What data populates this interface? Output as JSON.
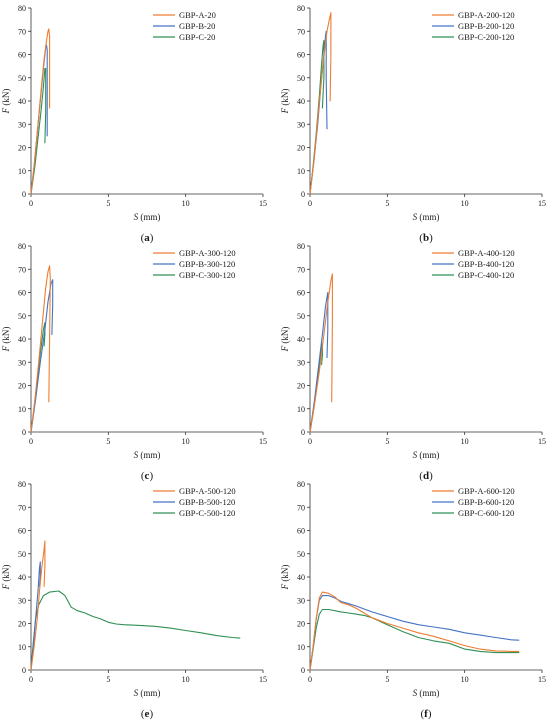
{
  "figure": {
    "background": "#ffffff"
  },
  "chart_data": [
    {
      "type": "line",
      "panel_label": "(a)",
      "xlabel_var": "S",
      "xlabel_unit": "(mm)",
      "ylabel_var": "F",
      "ylabel_unit": "(kN)",
      "xlim": [
        0,
        15
      ],
      "ylim": [
        0,
        80
      ],
      "xticks": [
        0,
        5,
        10,
        15
      ],
      "yticks": [
        0,
        10,
        20,
        30,
        40,
        50,
        60,
        70,
        80
      ],
      "legend_position": "top-right",
      "series": [
        {
          "name": "GBP-A-20",
          "color": "#ed7d31",
          "points": [
            [
              0,
              0
            ],
            [
              0.2,
              12
            ],
            [
              0.45,
              30
            ],
            [
              0.7,
              48
            ],
            [
              0.85,
              58
            ],
            [
              1.0,
              66
            ],
            [
              1.1,
              70
            ],
            [
              1.15,
              71
            ],
            [
              1.2,
              68
            ],
            [
              1.2,
              52
            ],
            [
              1.2,
              37
            ]
          ]
        },
        {
          "name": "GBP-B-20",
          "color": "#4473c4",
          "points": [
            [
              0,
              0
            ],
            [
              0.2,
              12
            ],
            [
              0.4,
              26
            ],
            [
              0.6,
              40
            ],
            [
              0.8,
              54
            ],
            [
              0.95,
              63
            ],
            [
              1.0,
              64
            ],
            [
              1.05,
              62
            ],
            [
              1.05,
              45
            ],
            [
              1.05,
              25
            ]
          ]
        },
        {
          "name": "GBP-C-20",
          "color": "#2f8f54",
          "points": [
            [
              0,
              0
            ],
            [
              0.25,
              12
            ],
            [
              0.45,
              24
            ],
            [
              0.65,
              36
            ],
            [
              0.8,
              46
            ],
            [
              0.9,
              54
            ],
            [
              0.95,
              54
            ],
            [
              0.95,
              35
            ],
            [
              0.9,
              22
            ]
          ]
        }
      ]
    },
    {
      "type": "line",
      "panel_label": "(b)",
      "xlabel_var": "S",
      "xlabel_unit": "(mm)",
      "ylabel_var": "F",
      "ylabel_unit": "(kN)",
      "xlim": [
        0,
        15
      ],
      "ylim": [
        0,
        80
      ],
      "xticks": [
        0,
        5,
        10,
        15
      ],
      "yticks": [
        0,
        10,
        20,
        30,
        40,
        50,
        60,
        70,
        80
      ],
      "legend_position": "top-right",
      "series": [
        {
          "name": "GBP-A-200-120",
          "color": "#ed7d31",
          "points": [
            [
              0,
              0
            ],
            [
              0.25,
              14
            ],
            [
              0.5,
              32
            ],
            [
              0.75,
              50
            ],
            [
              0.95,
              62
            ],
            [
              1.1,
              70
            ],
            [
              1.25,
              75
            ],
            [
              1.35,
              78
            ],
            [
              1.35,
              60
            ],
            [
              1.3,
              40
            ]
          ]
        },
        {
          "name": "GBP-B-200-120",
          "color": "#4473c4",
          "points": [
            [
              0,
              0
            ],
            [
              0.25,
              14
            ],
            [
              0.5,
              30
            ],
            [
              0.7,
              46
            ],
            [
              0.9,
              60
            ],
            [
              1.0,
              68
            ],
            [
              1.05,
              70
            ],
            [
              1.05,
              50
            ],
            [
              1.1,
              28
            ]
          ]
        },
        {
          "name": "GBP-C-200-120",
          "color": "#2f8f54",
          "points": [
            [
              0,
              0
            ],
            [
              0.2,
              12
            ],
            [
              0.4,
              26
            ],
            [
              0.6,
              42
            ],
            [
              0.75,
              56
            ],
            [
              0.85,
              64
            ],
            [
              0.9,
              66
            ],
            [
              0.9,
              50
            ],
            [
              0.8,
              37
            ]
          ]
        }
      ]
    },
    {
      "type": "line",
      "panel_label": "(c)",
      "xlabel_var": "S",
      "xlabel_unit": "(mm)",
      "ylabel_var": "F",
      "ylabel_unit": "(kN)",
      "xlim": [
        0,
        15
      ],
      "ylim": [
        0,
        80
      ],
      "xticks": [
        0,
        5,
        10,
        15
      ],
      "yticks": [
        0,
        10,
        20,
        30,
        40,
        50,
        60,
        70,
        80
      ],
      "legend_position": "top-right",
      "series": [
        {
          "name": "GBP-A-300-120",
          "color": "#ed7d31",
          "points": [
            [
              0,
              0
            ],
            [
              0.25,
              14
            ],
            [
              0.5,
              30
            ],
            [
              0.75,
              48
            ],
            [
              0.95,
              62
            ],
            [
              1.1,
              69
            ],
            [
              1.2,
              71.5
            ],
            [
              1.25,
              66
            ],
            [
              1.2,
              40
            ],
            [
              1.15,
              13
            ]
          ]
        },
        {
          "name": "GBP-B-300-120",
          "color": "#4473c4",
          "points": [
            [
              0,
              0
            ],
            [
              0.3,
              14
            ],
            [
              0.6,
              30
            ],
            [
              0.9,
              44
            ],
            [
              1.1,
              56
            ],
            [
              1.3,
              64
            ],
            [
              1.4,
              65.5
            ],
            [
              1.4,
              55
            ],
            [
              1.35,
              42
            ]
          ]
        },
        {
          "name": "GBP-C-300-120",
          "color": "#2f8f54",
          "points": [
            [
              0,
              0
            ],
            [
              0.2,
              10
            ],
            [
              0.4,
              22
            ],
            [
              0.6,
              34
            ],
            [
              0.8,
              44
            ],
            [
              0.9,
              47
            ],
            [
              0.9,
              42
            ],
            [
              0.85,
              37
            ]
          ]
        }
      ]
    },
    {
      "type": "line",
      "panel_label": "(d)",
      "xlabel_var": "S",
      "xlabel_unit": "(mm)",
      "ylabel_var": "F",
      "ylabel_unit": "(kN)",
      "xlim": [
        0,
        15
      ],
      "ylim": [
        0,
        80
      ],
      "xticks": [
        0,
        5,
        10,
        15
      ],
      "yticks": [
        0,
        10,
        20,
        30,
        40,
        50,
        60,
        70,
        80
      ],
      "legend_position": "top-right",
      "series": [
        {
          "name": "GBP-A-400-120",
          "color": "#ed7d31",
          "points": [
            [
              0,
              0
            ],
            [
              0.3,
              12
            ],
            [
              0.6,
              26
            ],
            [
              0.9,
              42
            ],
            [
              1.15,
              56
            ],
            [
              1.35,
              65
            ],
            [
              1.45,
              68
            ],
            [
              1.45,
              48
            ],
            [
              1.4,
              13
            ]
          ]
        },
        {
          "name": "GBP-B-400-120",
          "color": "#4473c4",
          "points": [
            [
              0,
              0
            ],
            [
              0.3,
              14
            ],
            [
              0.55,
              28
            ],
            [
              0.8,
              42
            ],
            [
              1.0,
              54
            ],
            [
              1.15,
              60
            ],
            [
              1.15,
              44
            ],
            [
              1.1,
              32
            ]
          ]
        },
        {
          "name": "GBP-C-400-120",
          "color": "#2f8f54",
          "points": [
            [
              0,
              0
            ],
            [
              0.2,
              8
            ],
            [
              0.4,
              18
            ],
            [
              0.6,
              28
            ],
            [
              0.75,
              37
            ],
            [
              0.8,
              38
            ],
            [
              0.8,
              33
            ],
            [
              0.75,
              29
            ]
          ]
        }
      ]
    },
    {
      "type": "line",
      "panel_label": "(e)",
      "xlabel_var": "S",
      "xlabel_unit": "(mm)",
      "ylabel_var": "F",
      "ylabel_unit": "(kN)",
      "xlim": [
        0,
        15
      ],
      "ylim": [
        0,
        80
      ],
      "xticks": [
        0,
        5,
        10,
        15
      ],
      "yticks": [
        0,
        10,
        20,
        30,
        40,
        50,
        60,
        70,
        80
      ],
      "legend_position": "top-right",
      "series": [
        {
          "name": "GBP-A-500-120",
          "color": "#ed7d31",
          "points": [
            [
              0,
              0
            ],
            [
              0.2,
              10
            ],
            [
              0.4,
              22
            ],
            [
              0.55,
              34
            ],
            [
              0.7,
              44
            ],
            [
              0.85,
              52
            ],
            [
              0.9,
              55.5
            ],
            [
              0.9,
              45
            ],
            [
              0.85,
              36
            ]
          ]
        },
        {
          "name": "GBP-B-500-120",
          "color": "#4473c4",
          "points": [
            [
              0,
              0
            ],
            [
              0.15,
              10
            ],
            [
              0.3,
              22
            ],
            [
              0.45,
              34
            ],
            [
              0.55,
              44
            ],
            [
              0.6,
              46.5
            ],
            [
              0.6,
              40
            ],
            [
              0.55,
              36
            ]
          ]
        },
        {
          "name": "GBP-C-500-120",
          "color": "#2f8f54",
          "points": [
            [
              0,
              0
            ],
            [
              0.15,
              12
            ],
            [
              0.3,
              22
            ],
            [
              0.5,
              28
            ],
            [
              0.8,
              32
            ],
            [
              1.2,
              33.5
            ],
            [
              1.8,
              34
            ],
            [
              2.2,
              32
            ],
            [
              2.6,
              27
            ],
            [
              3.0,
              25.5
            ],
            [
              3.5,
              24.5
            ],
            [
              4.0,
              23
            ],
            [
              4.5,
              22
            ],
            [
              5.0,
              20.5
            ],
            [
              5.5,
              19.8
            ],
            [
              6.0,
              19.5
            ],
            [
              7.0,
              19.2
            ],
            [
              8.0,
              18.8
            ],
            [
              9.0,
              18
            ],
            [
              10.0,
              17
            ],
            [
              11.0,
              16
            ],
            [
              12.0,
              14.8
            ],
            [
              13.0,
              14
            ],
            [
              13.5,
              13.7
            ]
          ]
        }
      ]
    },
    {
      "type": "line",
      "panel_label": "(f)",
      "xlabel_var": "S",
      "xlabel_unit": "(mm)",
      "ylabel_var": "F",
      "ylabel_unit": "(kN)",
      "xlim": [
        0,
        15
      ],
      "ylim": [
        0,
        80
      ],
      "xticks": [
        0,
        5,
        10,
        15
      ],
      "yticks": [
        0,
        10,
        20,
        30,
        40,
        50,
        60,
        70,
        80
      ],
      "legend_position": "top-right",
      "series": [
        {
          "name": "GBP-A-600-120",
          "color": "#ed7d31",
          "points": [
            [
              0,
              0
            ],
            [
              0.2,
              10
            ],
            [
              0.4,
              22
            ],
            [
              0.6,
              31
            ],
            [
              0.8,
              33.5
            ],
            [
              1.2,
              33
            ],
            [
              1.6,
              31.5
            ],
            [
              2.0,
              29
            ],
            [
              2.5,
              28
            ],
            [
              3.0,
              26.5
            ],
            [
              3.5,
              24.5
            ],
            [
              4.0,
              22.5
            ],
            [
              5.0,
              20
            ],
            [
              6.0,
              18
            ],
            [
              7.0,
              16
            ],
            [
              8.0,
              14.5
            ],
            [
              9.0,
              12.5
            ],
            [
              10.0,
              10.5
            ],
            [
              11.0,
              9
            ],
            [
              12.0,
              8.2
            ],
            [
              13.0,
              8
            ],
            [
              13.5,
              8
            ]
          ]
        },
        {
          "name": "GBP-B-600-120",
          "color": "#4473c4",
          "points": [
            [
              0,
              0
            ],
            [
              0.2,
              10
            ],
            [
              0.4,
              22
            ],
            [
              0.6,
              30
            ],
            [
              0.8,
              32
            ],
            [
              1.2,
              32
            ],
            [
              1.6,
              31
            ],
            [
              2.0,
              29.5
            ],
            [
              2.5,
              28.5
            ],
            [
              3.0,
              27.5
            ],
            [
              4.0,
              25
            ],
            [
              5.0,
              23
            ],
            [
              6.0,
              21
            ],
            [
              7.0,
              19.5
            ],
            [
              8.0,
              18.5
            ],
            [
              9.0,
              17.5
            ],
            [
              10.0,
              16
            ],
            [
              11.0,
              15
            ],
            [
              12.0,
              14
            ],
            [
              13.0,
              13
            ],
            [
              13.5,
              12.8
            ]
          ]
        },
        {
          "name": "GBP-C-600-120",
          "color": "#2f8f54",
          "points": [
            [
              0,
              0
            ],
            [
              0.2,
              9
            ],
            [
              0.4,
              18
            ],
            [
              0.6,
              24
            ],
            [
              0.8,
              26
            ],
            [
              1.2,
              26
            ],
            [
              1.6,
              25.5
            ],
            [
              2.0,
              25
            ],
            [
              2.5,
              24.5
            ],
            [
              3.0,
              24
            ],
            [
              3.5,
              23.5
            ],
            [
              4.0,
              22.5
            ],
            [
              5.0,
              19.5
            ],
            [
              6.0,
              16.5
            ],
            [
              7.0,
              14
            ],
            [
              8.0,
              12.5
            ],
            [
              9.0,
              11.5
            ],
            [
              10.0,
              9
            ],
            [
              11.0,
              8
            ],
            [
              12.0,
              7.5
            ],
            [
              13.0,
              7.5
            ],
            [
              13.5,
              7.5
            ]
          ]
        }
      ]
    }
  ]
}
